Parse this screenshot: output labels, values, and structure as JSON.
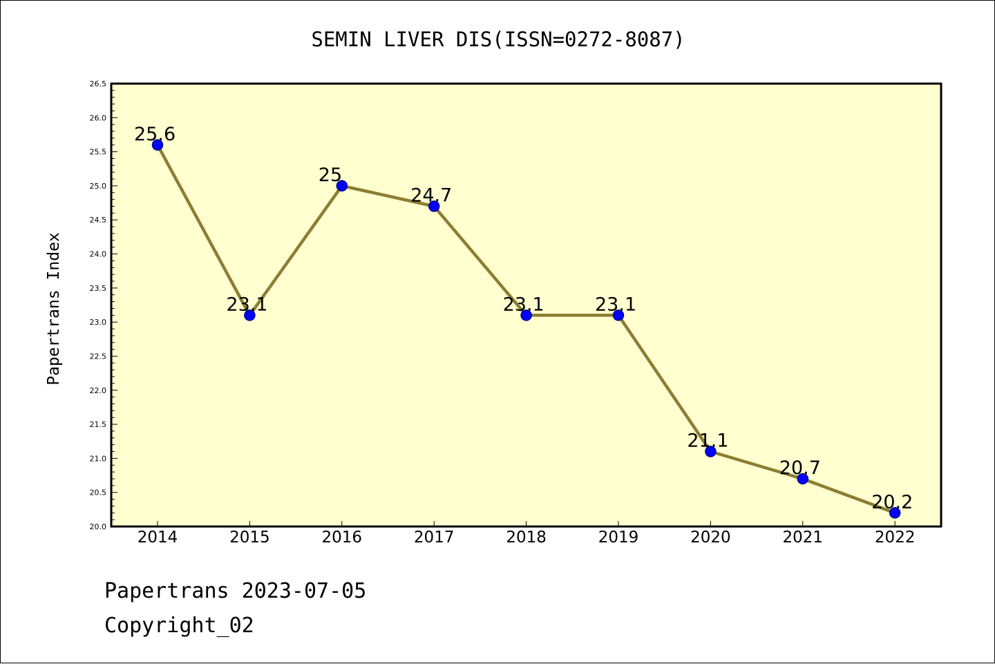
{
  "chart_data": {
    "type": "line",
    "title": "SEMIN LIVER DIS(ISSN=0272-8087)",
    "xlabel": "",
    "ylabel": "Papertrans Index",
    "categories": [
      "2014",
      "2015",
      "2016",
      "2017",
      "2018",
      "2019",
      "2020",
      "2021",
      "2022"
    ],
    "values": [
      25.6,
      23.1,
      25,
      24.7,
      23.1,
      23.1,
      21.1,
      20.7,
      20.2
    ],
    "data_labels": [
      "25.6",
      "23.1",
      "25",
      "24.7",
      "23.1",
      "23.1",
      "21.1",
      "20.7",
      "20.2"
    ],
    "ylim": [
      20.0,
      26.5
    ],
    "yticks": [
      "20.0",
      "20.5",
      "21.0",
      "21.5",
      "22.0",
      "22.5",
      "23.0",
      "23.5",
      "24.0",
      "24.5",
      "25.0",
      "25.5",
      "26.0",
      "26.5"
    ],
    "grid": false,
    "colors": {
      "plot_background": "#ffffd0",
      "line": "#8b7d32",
      "marker": "#0000ff",
      "marker_edge": "#00008b"
    }
  },
  "footer": {
    "line1": "Papertrans 2023-07-05",
    "line2": "Copyright_02"
  }
}
